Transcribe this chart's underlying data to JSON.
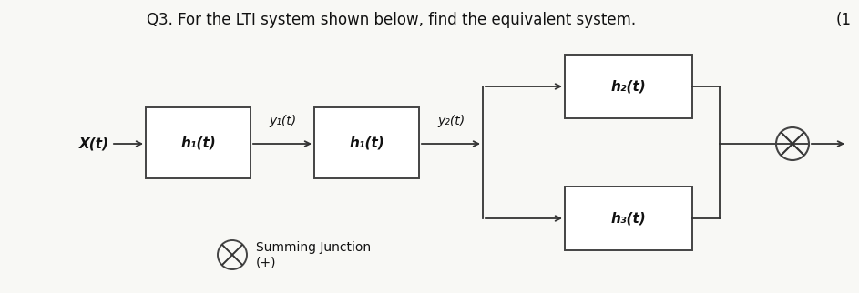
{
  "title": "Q3. For the LTI system shown below, find the equivalent system.",
  "title_fontsize": 12,
  "bg_color": "#f8f8f5",
  "box_color": "#ffffff",
  "box_edge_color": "#444444",
  "line_color": "#333333",
  "text_color": "#111111",
  "h1_label": "h₁(t)",
  "hf_label": "h₁(t)",
  "h2_label": "h₂(t)",
  "h3_label": "h₃(t)",
  "x_label": "X(t)",
  "y1_label": "y₁(t)",
  "y2_label": "y₂(t)",
  "legend_text": "Summing Junction\n(+)",
  "corner_text": "(1"
}
